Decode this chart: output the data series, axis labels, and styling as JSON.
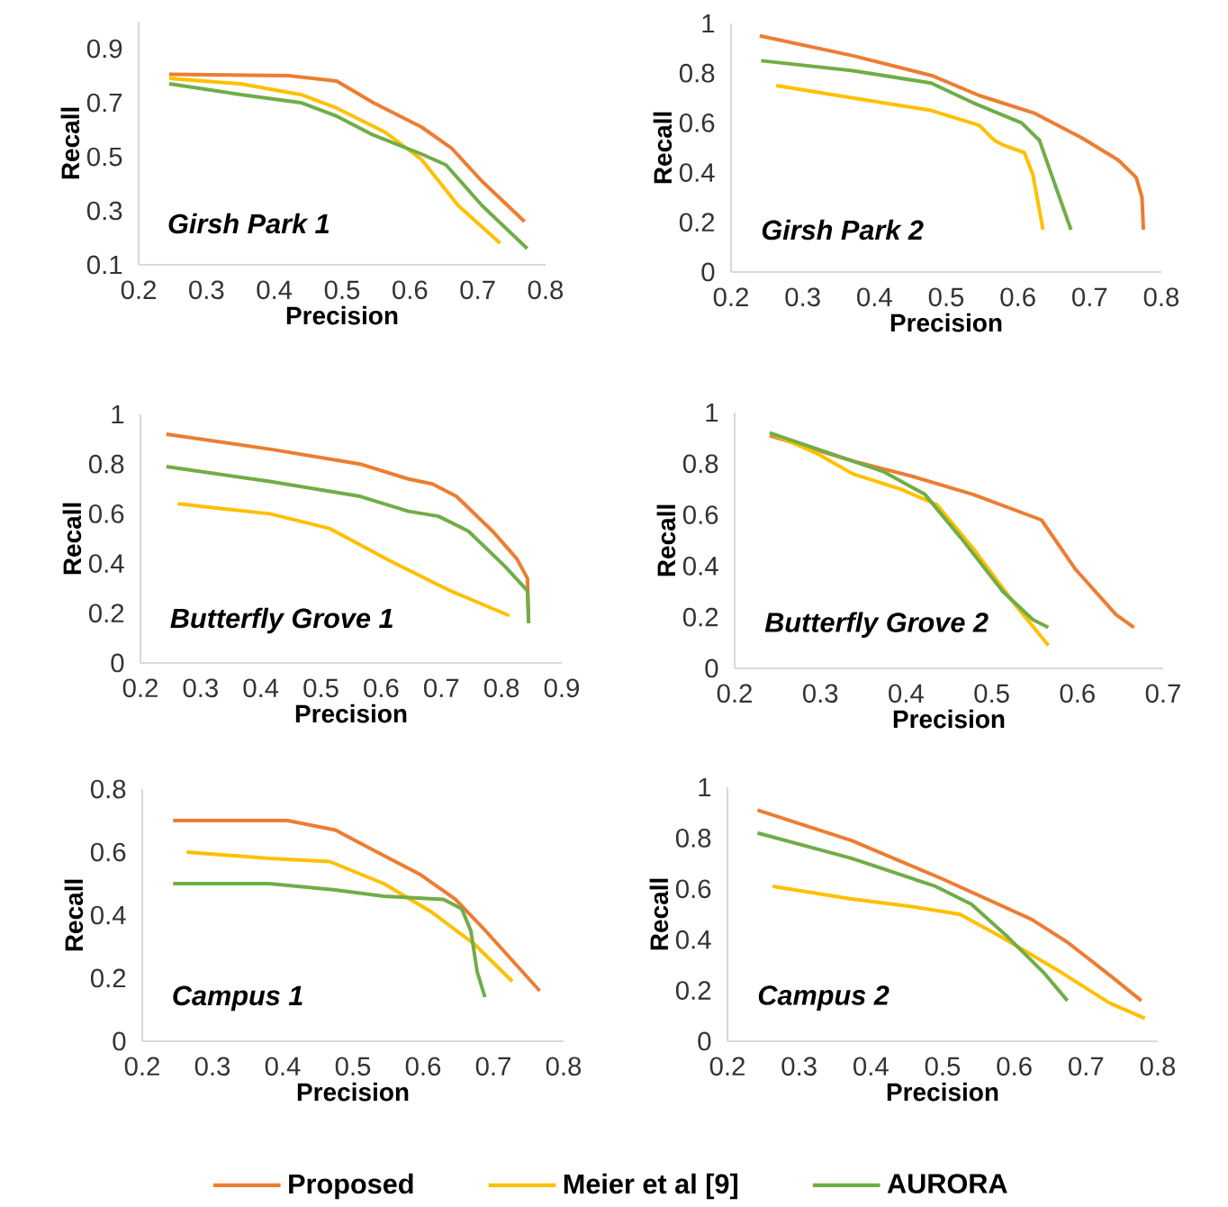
{
  "chart_data": [
    {
      "type": "line",
      "xlabel": "Precision",
      "ylabel": "Recall",
      "xlim": [
        0.2,
        0.8
      ],
      "ylim": [
        0.1,
        1
      ],
      "xticks": [
        0.2,
        0.3,
        0.4,
        0.5,
        0.6,
        0.7,
        0.8
      ],
      "yticks": [
        0.1,
        0.3,
        0.5,
        0.7,
        0.9
      ],
      "annotations": [
        "Girsh Park 1"
      ],
      "series": [
        {
          "color": "#ed7d31",
          "x": [
            0.245,
            0.421,
            0.492,
            0.546,
            0.617,
            0.662,
            0.706,
            0.769
          ],
          "values": [
            0.805,
            0.8,
            0.78,
            0.7,
            0.61,
            0.53,
            0.41,
            0.26
          ]
        },
        {
          "color": "#ffc000",
          "x": [
            0.245,
            0.35,
            0.439,
            0.492,
            0.564,
            0.617,
            0.671,
            0.733
          ],
          "values": [
            0.79,
            0.77,
            0.73,
            0.68,
            0.59,
            0.49,
            0.32,
            0.18
          ]
        },
        {
          "color": "#70ad47",
          "x": [
            0.245,
            0.35,
            0.439,
            0.492,
            0.546,
            0.617,
            0.653,
            0.706,
            0.773
          ],
          "values": [
            0.77,
            0.73,
            0.7,
            0.65,
            0.58,
            0.51,
            0.47,
            0.32,
            0.16
          ]
        }
      ]
    },
    {
      "type": "line",
      "xlabel": "Precision",
      "ylabel": "Recall",
      "xlim": [
        0.2,
        0.8
      ],
      "ylim": [
        0,
        1
      ],
      "xticks": [
        0.2,
        0.3,
        0.4,
        0.5,
        0.6,
        0.7,
        0.8
      ],
      "yticks": [
        0,
        0.2,
        0.4,
        0.6,
        0.8,
        1
      ],
      "annotations": [
        "Girsh Park 2"
      ],
      "series": [
        {
          "color": "#ed7d31",
          "x": [
            0.24,
            0.37,
            0.48,
            0.546,
            0.622,
            0.689,
            0.74,
            0.765,
            0.773,
            0.775
          ],
          "values": [
            0.95,
            0.87,
            0.79,
            0.71,
            0.64,
            0.54,
            0.45,
            0.38,
            0.3,
            0.17
          ]
        },
        {
          "color": "#ffc000",
          "x": [
            0.263,
            0.37,
            0.479,
            0.546,
            0.567,
            0.58,
            0.609,
            0.621,
            0.635
          ],
          "values": [
            0.75,
            0.7,
            0.65,
            0.59,
            0.53,
            0.51,
            0.48,
            0.39,
            0.17
          ]
        },
        {
          "color": "#70ad47",
          "x": [
            0.242,
            0.37,
            0.479,
            0.538,
            0.605,
            0.63,
            0.647,
            0.674
          ],
          "values": [
            0.85,
            0.81,
            0.76,
            0.68,
            0.6,
            0.53,
            0.39,
            0.17
          ]
        }
      ]
    },
    {
      "type": "line",
      "xlabel": "Precision",
      "ylabel": "Recall",
      "xlim": [
        0.2,
        0.9
      ],
      "ylim": [
        0,
        1
      ],
      "xticks": [
        0.2,
        0.3,
        0.4,
        0.5,
        0.6,
        0.7,
        0.8,
        0.9
      ],
      "yticks": [
        0,
        0.2,
        0.4,
        0.6,
        0.8,
        1
      ],
      "annotations": [
        "Butterfly Grove 1"
      ],
      "series": [
        {
          "color": "#ed7d31",
          "x": [
            0.243,
            0.415,
            0.565,
            0.645,
            0.685,
            0.725,
            0.785,
            0.825,
            0.843,
            0.845
          ],
          "values": [
            0.92,
            0.86,
            0.8,
            0.74,
            0.72,
            0.67,
            0.53,
            0.42,
            0.34,
            0.16
          ]
        },
        {
          "color": "#ffc000",
          "x": [
            0.262,
            0.415,
            0.465,
            0.515,
            0.615,
            0.715,
            0.813
          ],
          "values": [
            0.64,
            0.6,
            0.57,
            0.54,
            0.41,
            0.29,
            0.19
          ]
        },
        {
          "color": "#70ad47",
          "x": [
            0.243,
            0.415,
            0.565,
            0.645,
            0.695,
            0.745,
            0.805,
            0.843,
            0.845
          ],
          "values": [
            0.79,
            0.73,
            0.67,
            0.61,
            0.59,
            0.53,
            0.39,
            0.29,
            0.16
          ]
        }
      ]
    },
    {
      "type": "line",
      "xlabel": "Precision",
      "ylabel": "Recall",
      "xlim": [
        0.2,
        0.7
      ],
      "ylim": [
        0,
        1
      ],
      "xticks": [
        0.2,
        0.3,
        0.4,
        0.5,
        0.6,
        0.7
      ],
      "yticks": [
        0,
        0.2,
        0.4,
        0.6,
        0.8,
        1
      ],
      "annotations": [
        "Butterfly Grove 2"
      ],
      "series": [
        {
          "color": "#ed7d31",
          "x": [
            0.241,
            0.338,
            0.408,
            0.478,
            0.558,
            0.597,
            0.645,
            0.666
          ],
          "values": [
            0.91,
            0.81,
            0.75,
            0.68,
            0.58,
            0.39,
            0.21,
            0.16
          ]
        },
        {
          "color": "#ffc000",
          "x": [
            0.241,
            0.296,
            0.338,
            0.394,
            0.436,
            0.478,
            0.527,
            0.566
          ],
          "values": [
            0.92,
            0.84,
            0.76,
            0.7,
            0.64,
            0.47,
            0.25,
            0.09
          ]
        },
        {
          "color": "#70ad47",
          "x": [
            0.241,
            0.303,
            0.373,
            0.422,
            0.464,
            0.513,
            0.548,
            0.566
          ],
          "values": [
            0.92,
            0.85,
            0.77,
            0.68,
            0.51,
            0.3,
            0.19,
            0.16
          ]
        }
      ]
    },
    {
      "type": "line",
      "xlabel": "Precision",
      "ylabel": "Recall",
      "xlim": [
        0.2,
        0.8
      ],
      "ylim": [
        0,
        0.8
      ],
      "xticks": [
        0.2,
        0.3,
        0.4,
        0.5,
        0.6,
        0.7,
        0.8
      ],
      "yticks": [
        0,
        0.2,
        0.4,
        0.6,
        0.8
      ],
      "annotations": [
        "Campus 1"
      ],
      "series": [
        {
          "color": "#ed7d31",
          "x": [
            0.244,
            0.407,
            0.475,
            0.526,
            0.595,
            0.646,
            0.689,
            0.766
          ],
          "values": [
            0.7,
            0.7,
            0.67,
            0.61,
            0.53,
            0.45,
            0.35,
            0.16
          ]
        },
        {
          "color": "#ffc000",
          "x": [
            0.263,
            0.381,
            0.467,
            0.544,
            0.612,
            0.672,
            0.727
          ],
          "values": [
            0.6,
            0.58,
            0.57,
            0.5,
            0.41,
            0.31,
            0.19
          ]
        },
        {
          "color": "#70ad47",
          "x": [
            0.244,
            0.381,
            0.475,
            0.544,
            0.629,
            0.655,
            0.668,
            0.677,
            0.688
          ],
          "values": [
            0.5,
            0.5,
            0.48,
            0.46,
            0.45,
            0.42,
            0.35,
            0.22,
            0.14
          ]
        }
      ]
    },
    {
      "type": "line",
      "xlabel": "Precision",
      "ylabel": "Recall",
      "xlim": [
        0.2,
        0.8
      ],
      "ylim": [
        0,
        1
      ],
      "xticks": [
        0.2,
        0.3,
        0.4,
        0.5,
        0.6,
        0.7,
        0.8
      ],
      "yticks": [
        0,
        0.2,
        0.4,
        0.6,
        0.8,
        1
      ],
      "annotations": [
        "Campus 2"
      ],
      "legend": "bottom",
      "series": [
        {
          "name": "Proposed",
          "color": "#ed7d31",
          "x": [
            0.242,
            0.373,
            0.499,
            0.624,
            0.674,
            0.733,
            0.777
          ],
          "values": [
            0.91,
            0.79,
            0.64,
            0.48,
            0.39,
            0.26,
            0.16
          ]
        },
        {
          "name": "Meier et al [9]",
          "color": "#ffc000",
          "x": [
            0.263,
            0.373,
            0.457,
            0.524,
            0.582,
            0.666,
            0.733,
            0.782
          ],
          "values": [
            0.61,
            0.56,
            0.53,
            0.5,
            0.41,
            0.27,
            0.15,
            0.09
          ]
        },
        {
          "name": "AURORA",
          "color": "#70ad47",
          "x": [
            0.242,
            0.373,
            0.49,
            0.54,
            0.591,
            0.641,
            0.674
          ],
          "values": [
            0.82,
            0.72,
            0.61,
            0.54,
            0.41,
            0.27,
            0.16
          ]
        }
      ]
    }
  ]
}
